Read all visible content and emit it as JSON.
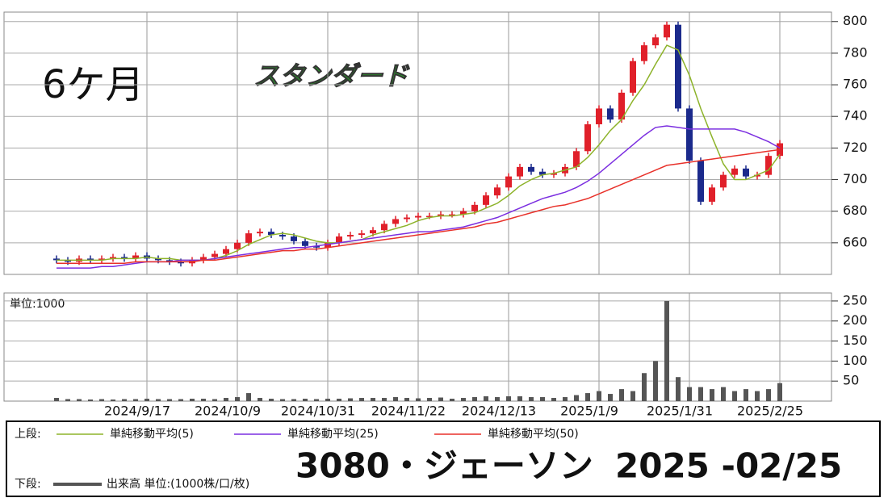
{
  "chart_data": [
    {
      "type": "candlestick",
      "label": "6ケ月",
      "market": "スタンダード",
      "up_color": "#e0202a",
      "down_color": "#1b2a8c",
      "open": [
        650,
        649,
        648,
        650,
        649,
        650,
        651,
        650,
        652,
        650,
        649,
        648,
        647,
        649,
        651,
        653,
        656,
        660,
        666,
        667,
        665,
        664,
        661,
        658,
        657,
        660,
        664,
        665,
        666,
        668,
        672,
        675,
        676,
        677,
        677,
        678,
        678,
        680,
        684,
        690,
        695,
        702,
        708,
        705,
        703,
        704,
        708,
        718,
        735,
        745,
        738,
        755,
        775,
        785,
        790,
        798,
        745,
        712,
        686,
        695,
        703,
        707,
        702,
        703,
        715
      ],
      "high": [
        652,
        651,
        652,
        652,
        652,
        653,
        653,
        654,
        654,
        652,
        651,
        650,
        651,
        653,
        655,
        658,
        662,
        668,
        669,
        669,
        667,
        666,
        663,
        660,
        662,
        666,
        667,
        668,
        670,
        674,
        677,
        678,
        679,
        679,
        680,
        680,
        682,
        686,
        692,
        697,
        704,
        710,
        710,
        707,
        706,
        710,
        720,
        737,
        747,
        747,
        757,
        777,
        787,
        792,
        800,
        800,
        747,
        714,
        697,
        705,
        709,
        709,
        705,
        717,
        725
      ],
      "low": [
        647,
        646,
        646,
        647,
        647,
        648,
        648,
        648,
        648,
        647,
        646,
        645,
        645,
        647,
        649,
        651,
        654,
        658,
        664,
        663,
        662,
        659,
        656,
        655,
        655,
        658,
        662,
        663,
        664,
        666,
        670,
        673,
        674,
        675,
        675,
        676,
        676,
        678,
        682,
        688,
        693,
        700,
        703,
        701,
        701,
        702,
        706,
        716,
        733,
        736,
        736,
        753,
        773,
        783,
        788,
        743,
        710,
        684,
        684,
        693,
        701,
        700,
        700,
        701,
        713
      ],
      "close": [
        649,
        648,
        650,
        649,
        650,
        651,
        650,
        652,
        650,
        649,
        648,
        647,
        649,
        651,
        653,
        656,
        660,
        666,
        667,
        665,
        664,
        661,
        658,
        657,
        660,
        664,
        665,
        666,
        668,
        672,
        675,
        676,
        677,
        677,
        678,
        678,
        680,
        684,
        690,
        695,
        702,
        708,
        705,
        703,
        704,
        708,
        718,
        735,
        745,
        738,
        755,
        775,
        785,
        790,
        798,
        745,
        712,
        686,
        695,
        703,
        707,
        702,
        703,
        715,
        723
      ],
      "series": [
        {
          "name": "単純移動平均(5)",
          "color": "#8db32a",
          "values": [
            649,
            649,
            649,
            649,
            649,
            650,
            650,
            650,
            651,
            650,
            650,
            649,
            649,
            649,
            650,
            652,
            655,
            659,
            662,
            665,
            666,
            665,
            663,
            661,
            660,
            660,
            661,
            662,
            665,
            667,
            669,
            671,
            674,
            676,
            677,
            677,
            678,
            679,
            682,
            685,
            690,
            696,
            700,
            703,
            704,
            706,
            708,
            714,
            722,
            731,
            738,
            750,
            760,
            773,
            785,
            782,
            766,
            745,
            727,
            710,
            700,
            700,
            703,
            706,
            716
          ]
        },
        {
          "name": "単純移動平均(25)",
          "color": "#7b2ee0",
          "values": [
            644,
            644,
            644,
            644,
            645,
            645,
            646,
            647,
            648,
            648,
            648,
            649,
            649,
            649,
            650,
            651,
            652,
            653,
            654,
            655,
            656,
            657,
            657,
            658,
            659,
            660,
            661,
            662,
            663,
            664,
            665,
            666,
            667,
            667,
            668,
            669,
            670,
            672,
            674,
            676,
            679,
            682,
            685,
            688,
            690,
            692,
            695,
            699,
            704,
            710,
            716,
            722,
            728,
            733,
            734,
            733,
            732,
            732,
            732,
            732,
            732,
            730,
            727,
            724,
            720
          ]
        },
        {
          "name": "単純移動平均(50)",
          "color": "#e8312a",
          "values": [
            647,
            647,
            647,
            647,
            647,
            647,
            647,
            648,
            648,
            648,
            648,
            648,
            648,
            649,
            649,
            650,
            651,
            652,
            653,
            654,
            655,
            655,
            656,
            656,
            657,
            658,
            659,
            660,
            661,
            662,
            663,
            664,
            665,
            666,
            667,
            668,
            669,
            670,
            672,
            673,
            675,
            677,
            679,
            681,
            683,
            684,
            686,
            688,
            691,
            694,
            697,
            700,
            703,
            706,
            709,
            710,
            711,
            712,
            713,
            714,
            715,
            716,
            717,
            718,
            719
          ]
        }
      ],
      "legend_label": "上段:",
      "ylim": [
        640,
        806
      ],
      "yticks": [
        660,
        680,
        700,
        720,
        740,
        760,
        780,
        800
      ],
      "grid": true
    },
    {
      "type": "bar",
      "unit_label": "単位:1000",
      "categories": [
        null,
        null,
        null,
        null,
        null,
        null,
        null,
        null,
        "2024/9/17",
        null,
        null,
        null,
        null,
        null,
        null,
        null,
        "2024/10/9",
        null,
        null,
        null,
        null,
        null,
        null,
        null,
        "2024/10/31",
        null,
        null,
        null,
        null,
        null,
        null,
        null,
        "2024/11/22",
        null,
        null,
        null,
        null,
        null,
        null,
        null,
        "2024/12/13",
        null,
        null,
        null,
        null,
        null,
        null,
        null,
        "2025/1/9",
        null,
        null,
        null,
        null,
        null,
        null,
        null,
        "2025/1/31",
        null,
        null,
        null,
        null,
        null,
        null,
        null,
        "2025/2/25"
      ],
      "series": [
        {
          "name": "出来高 単位:(1000株/口/枚)",
          "color": "#555555",
          "values": [
            8,
            5,
            5,
            4,
            5,
            4,
            5,
            5,
            6,
            5,
            5,
            5,
            6,
            6,
            5,
            8,
            10,
            20,
            8,
            6,
            5,
            5,
            6,
            5,
            6,
            6,
            7,
            8,
            8,
            8,
            10,
            8,
            7,
            8,
            9,
            6,
            8,
            10,
            12,
            10,
            12,
            12,
            10,
            10,
            8,
            10,
            15,
            20,
            25,
            18,
            30,
            25,
            70,
            100,
            250,
            60,
            35,
            35,
            30,
            35,
            25,
            30,
            25,
            30,
            45
          ]
        }
      ],
      "legend_label": "下段:",
      "ylim": [
        0,
        270
      ],
      "yticks": [
        50,
        100,
        150,
        200,
        250
      ],
      "grid": true
    },
    {
      "type": "caption",
      "title": "3080・ジェーソン",
      "date": "2025 -02/25"
    }
  ]
}
